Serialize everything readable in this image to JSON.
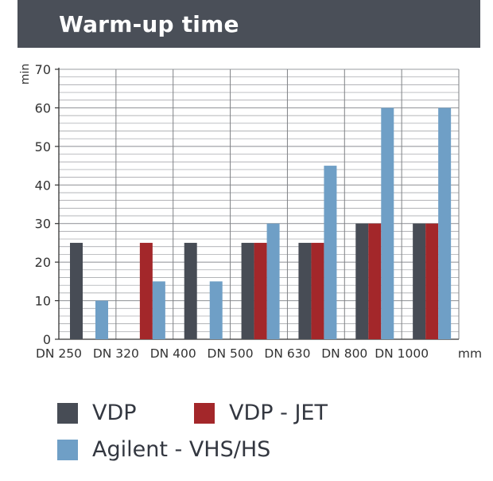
{
  "header": {
    "title": "Warm-up time"
  },
  "chart_data": {
    "type": "bar",
    "title": "Warm-up time",
    "xlabel": "mm",
    "ylabel": "min",
    "ylim": [
      0,
      70
    ],
    "yticks": [
      0,
      10,
      20,
      30,
      40,
      50,
      60,
      70
    ],
    "grid": true,
    "categories": [
      "DN 250",
      "DN 320",
      "DN 400",
      "DN 500",
      "DN 630",
      "DN 800",
      "DN 1000"
    ],
    "series": [
      {
        "name": "VDP",
        "color": "#474c55",
        "values": [
          25,
          null,
          25,
          25,
          25,
          30,
          30
        ]
      },
      {
        "name": "VDP - JET",
        "color": "#a3272a",
        "values": [
          null,
          25,
          null,
          25,
          25,
          30,
          30
        ]
      },
      {
        "name": "Agilent - VHS/HS",
        "color": "#6f9fc6",
        "values": [
          10,
          15,
          15,
          30,
          45,
          60,
          60
        ]
      }
    ],
    "legend_position": "bottom"
  }
}
